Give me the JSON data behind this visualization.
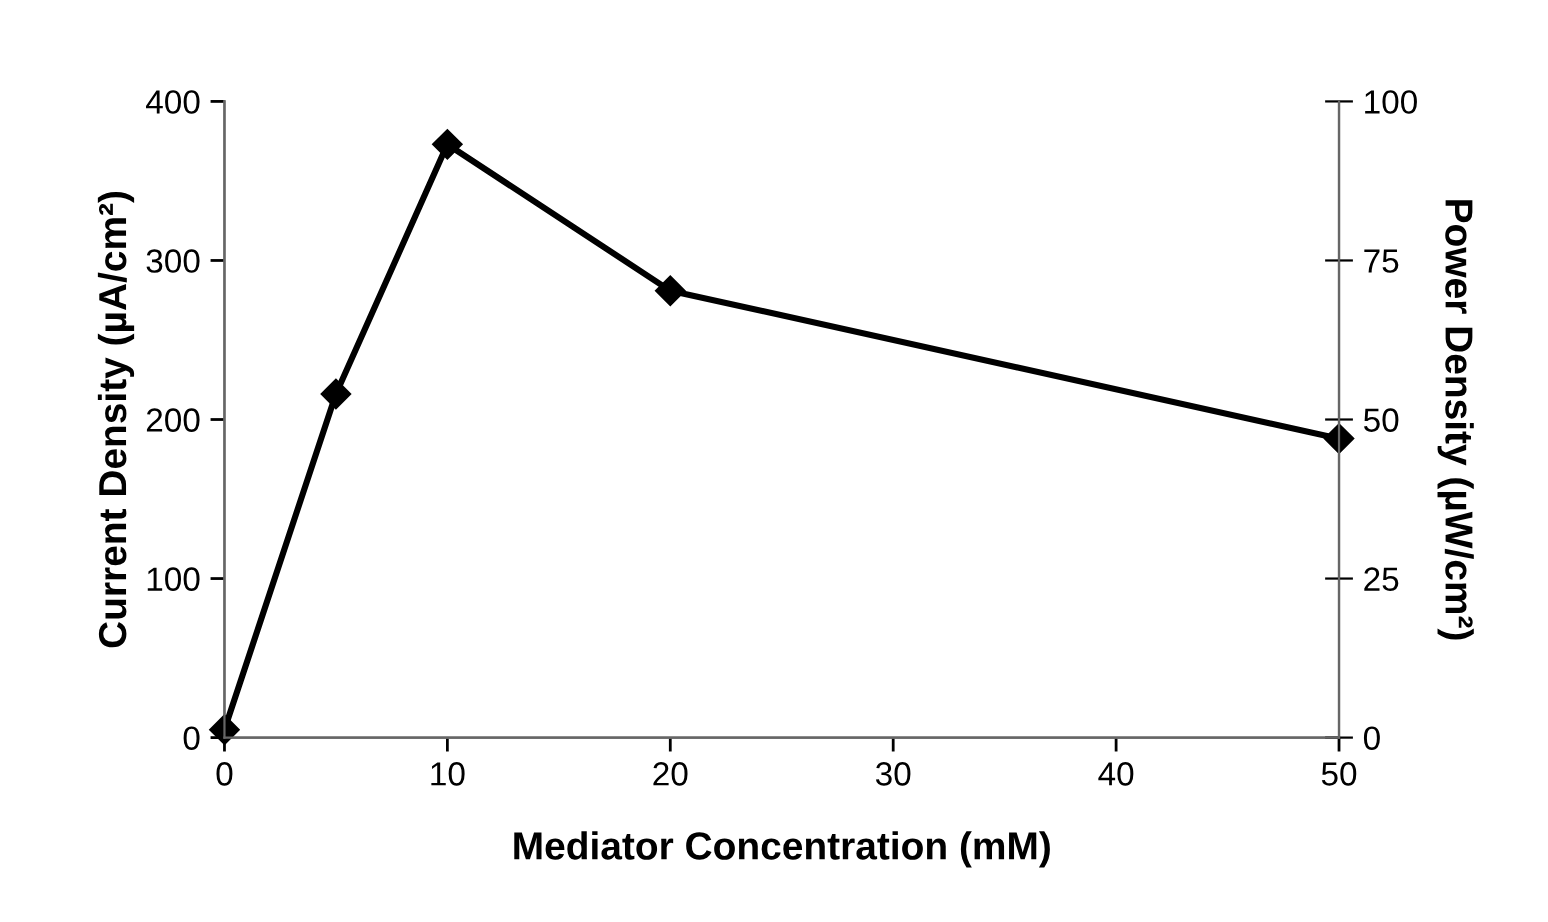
{
  "chart_data": {
    "type": "line",
    "xlabel": "Mediator Concentration (mM)",
    "ylabel": "Current Density (µA/cm²)",
    "y2label": "Power Density (µW/cm²)",
    "x": [
      0,
      5,
      10,
      20,
      50
    ],
    "series": [
      {
        "color": "#000000",
        "values": [
          5,
          216,
          373,
          281,
          188
        ]
      }
    ],
    "marker": "diamond",
    "line_style": "solid",
    "grid": false,
    "legend": false,
    "xlim": [
      0,
      50
    ],
    "xticks": [
      0,
      10,
      20,
      30,
      40,
      50
    ],
    "ylim": [
      0,
      400
    ],
    "yticks": [
      0,
      100,
      200,
      300,
      400
    ],
    "y2lim": [
      0,
      100
    ],
    "y2ticks": [
      0,
      25,
      50,
      75,
      100
    ]
  }
}
